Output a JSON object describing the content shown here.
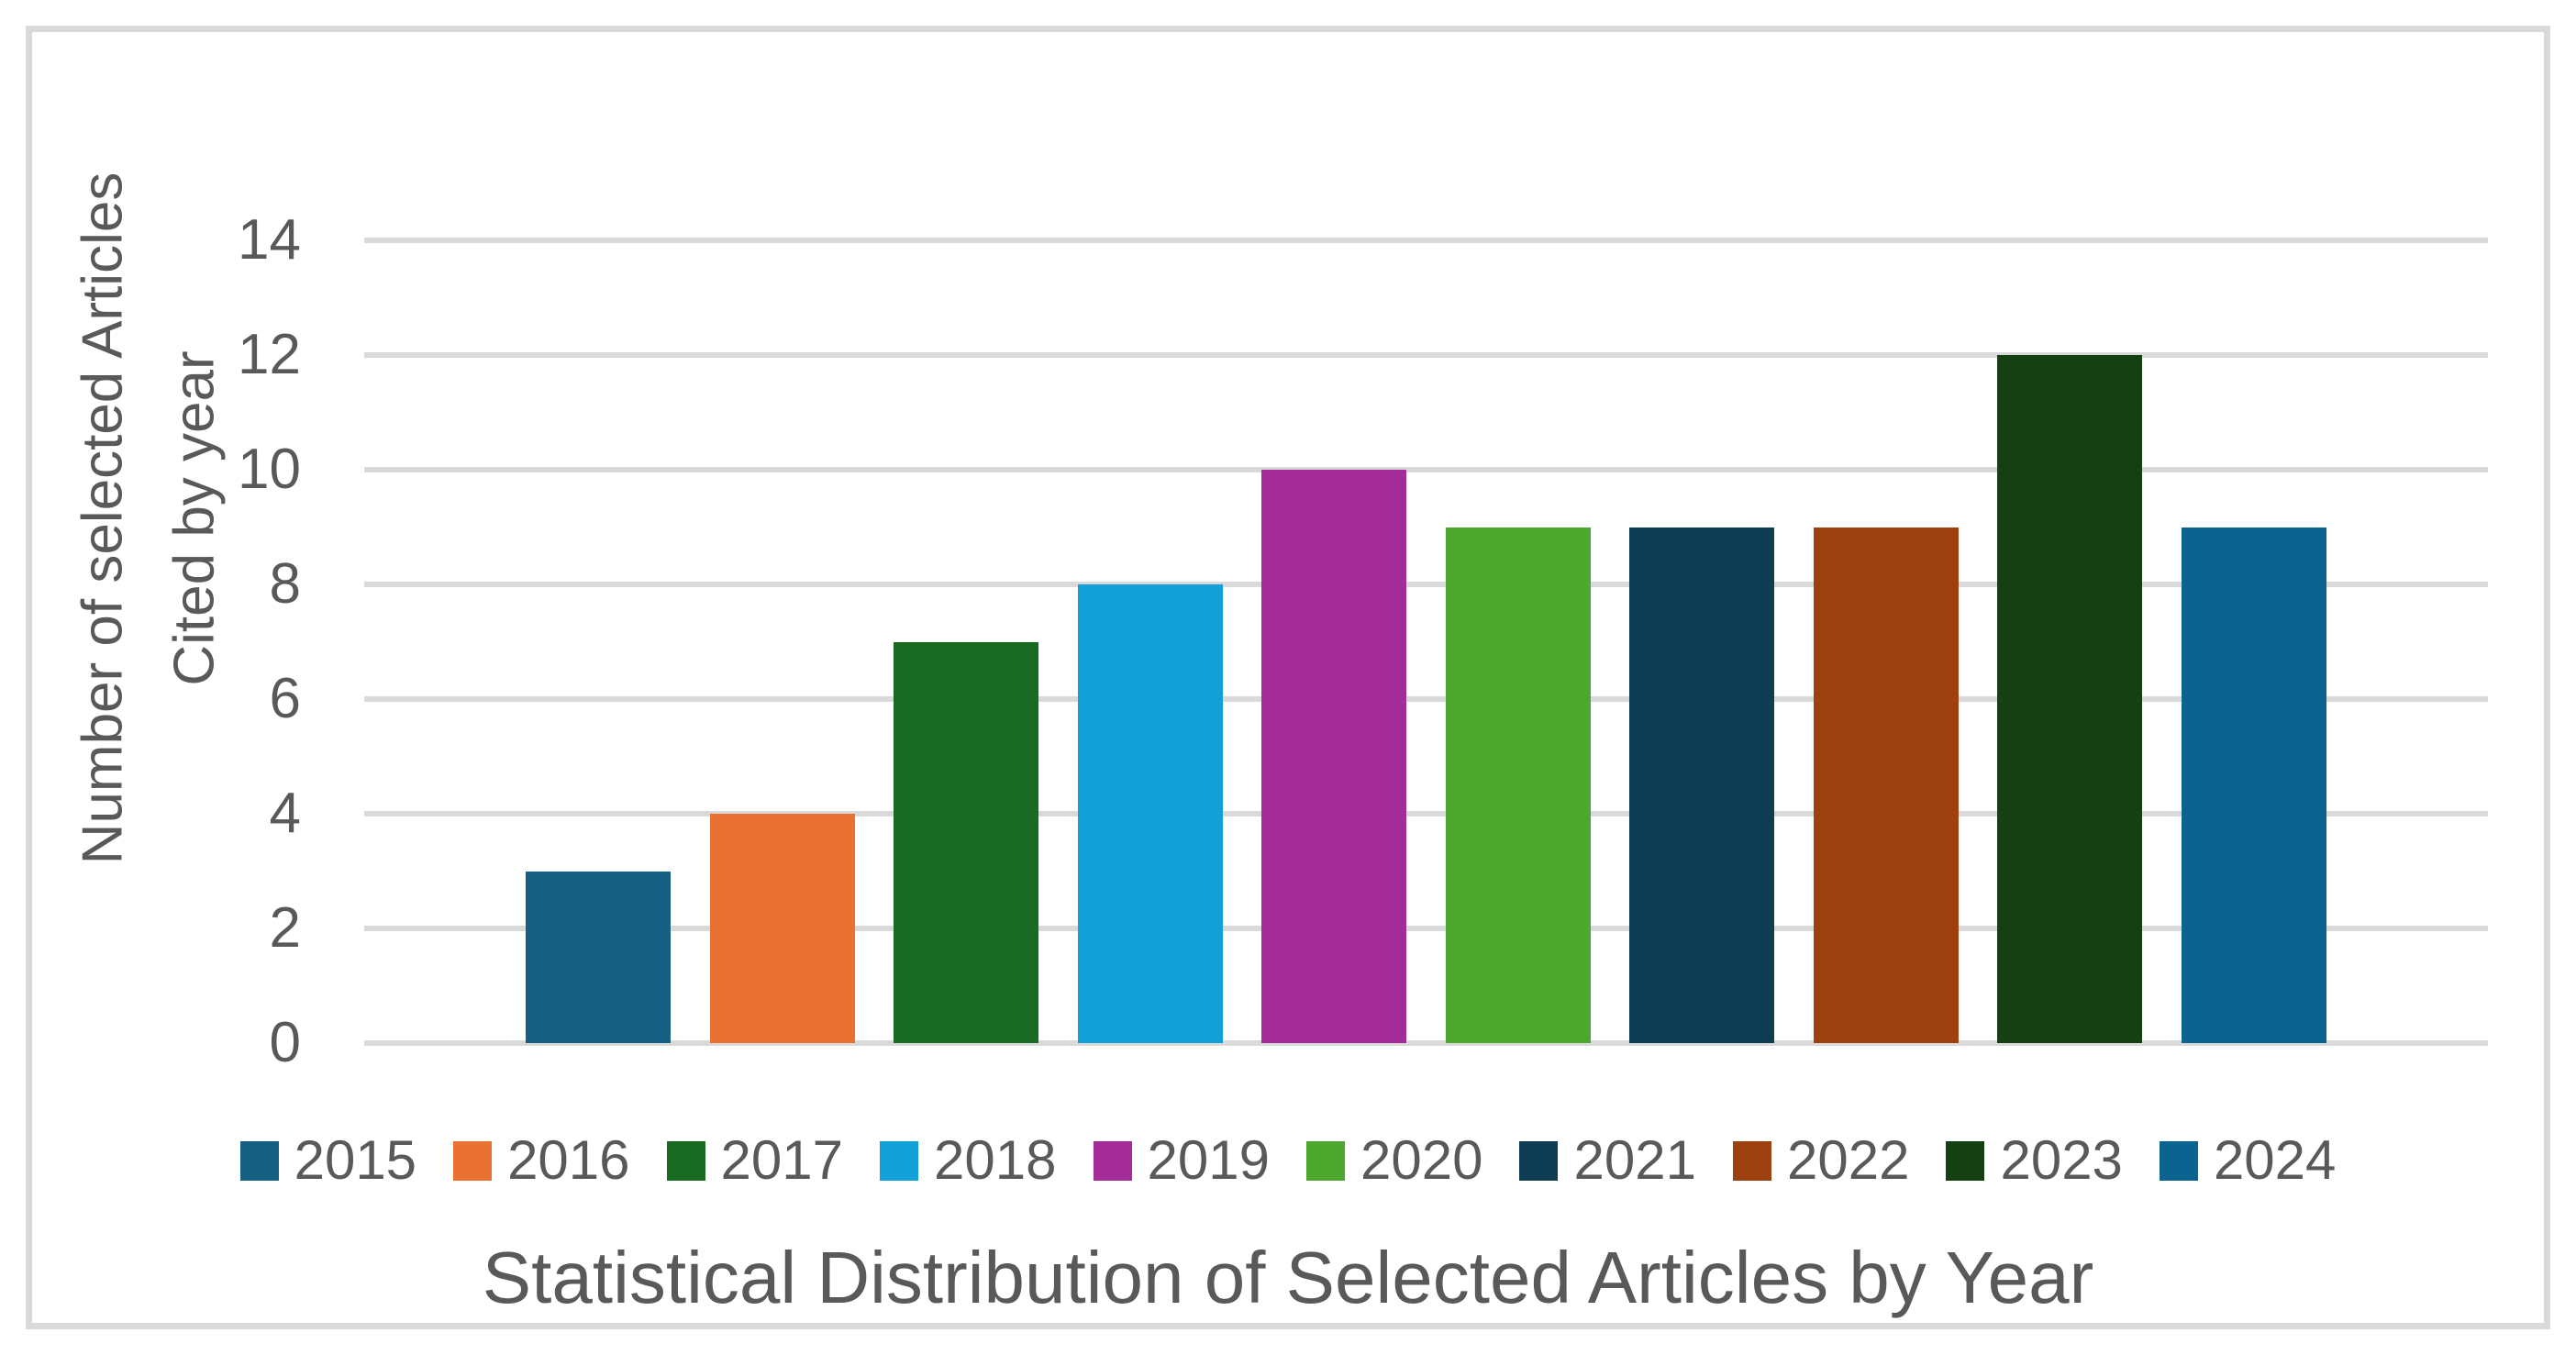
{
  "chart_data": {
    "type": "bar",
    "xlabel": "Statistical Distribution of Selected Articles by Year",
    "ylabel": "Number of selected Articles Cited by year",
    "ylabel_lines": [
      "Number of selected Articles",
      "Cited by year"
    ],
    "categories": [
      "2015",
      "2016",
      "2017",
      "2018",
      "2019",
      "2020",
      "2021",
      "2022",
      "2023",
      "2024"
    ],
    "values": [
      3,
      4,
      7,
      8,
      10,
      9,
      9,
      9,
      12,
      9
    ],
    "colors": [
      "#156082",
      "#E97132",
      "#196B24",
      "#12A0D8",
      "#A32C99",
      "#4EA72E",
      "#0E3D54",
      "#9E4110",
      "#154014",
      "#0B6390"
    ],
    "ylim": [
      0,
      14
    ],
    "yticks": [
      0,
      2,
      4,
      6,
      8,
      10,
      12,
      14
    ],
    "grid": "horizontal",
    "legend_position": "bottom",
    "styles": {
      "text_color": "#595959",
      "grid_color": "#D9D9D9",
      "frame_border_color": "#D9D9D9",
      "background": "#FFFFFF"
    }
  }
}
